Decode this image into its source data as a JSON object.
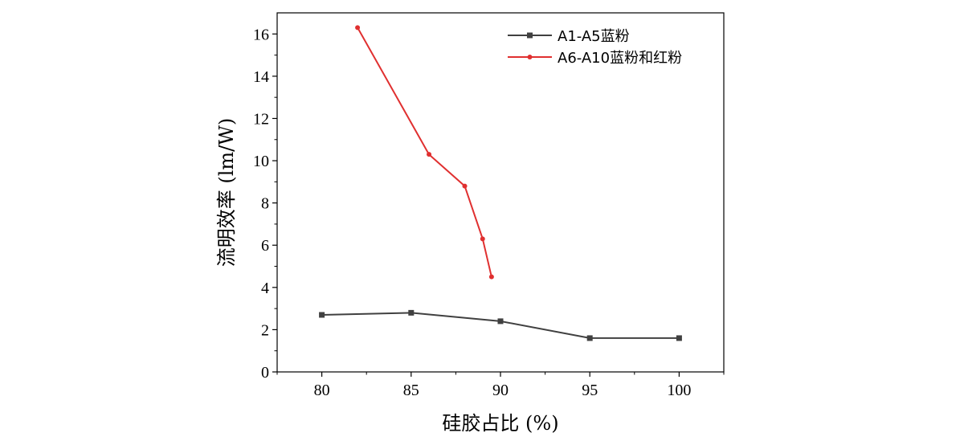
{
  "chart_data": {
    "type": "line",
    "xlabel": "硅胶占比 (%)",
    "ylabel": "流明效率 (lm/W)",
    "xlim": [
      77.5,
      102.5
    ],
    "ylim": [
      0,
      17
    ],
    "x_ticks": [
      80,
      85,
      90,
      95,
      100
    ],
    "y_ticks": [
      0,
      2,
      4,
      6,
      8,
      10,
      12,
      14,
      16
    ],
    "grid": false,
    "legend_position": "top-right",
    "series": [
      {
        "name": "A1-A5蓝粉",
        "color": "#404040",
        "marker": "square",
        "x": [
          80,
          85,
          90,
          95,
          100
        ],
        "y": [
          2.7,
          2.8,
          2.4,
          1.6,
          1.6
        ]
      },
      {
        "name": "A6-A10蓝粉和红粉",
        "color": "#e03030",
        "marker": "circle",
        "x": [
          82,
          86,
          88,
          89,
          89.5
        ],
        "y": [
          16.3,
          10.3,
          8.8,
          6.3,
          4.5
        ]
      }
    ]
  }
}
